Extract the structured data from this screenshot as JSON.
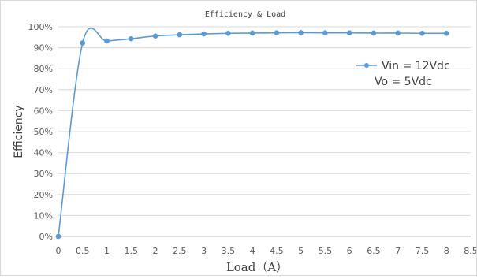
{
  "chart_data": {
    "type": "line",
    "title": "Efficiency & Load",
    "xlabel": "Load（A）",
    "ylabel": "Efficiency",
    "xlim": [
      0,
      8.5
    ],
    "ylim": [
      0,
      100
    ],
    "x_ticks": [
      "0",
      "0.5",
      "1",
      "1.5",
      "2",
      "2.5",
      "3",
      "3.5",
      "4",
      "4.5",
      "5",
      "5.5",
      "6",
      "6.5",
      "7",
      "7.5",
      "8",
      "8.5"
    ],
    "y_ticks": [
      "0%",
      "10%",
      "20%",
      "30%",
      "40%",
      "50%",
      "60%",
      "70%",
      "80%",
      "90%",
      "100%"
    ],
    "grid": true,
    "legend_position": "right",
    "legend": {
      "series_label": "Vin = 12Vdc",
      "second_line": "Vo = 5Vdc"
    },
    "series": [
      {
        "name": "Vin = 12Vdc",
        "color": "#5b9bd5",
        "x": [
          0,
          0.5,
          1,
          1.5,
          2,
          2.5,
          3,
          3.5,
          4,
          4.5,
          5,
          5.5,
          6,
          6.5,
          7,
          7.5,
          8
        ],
        "y": [
          0,
          92.3,
          93.2,
          94.3,
          95.6,
          96.2,
          96.6,
          96.9,
          97.0,
          97.1,
          97.2,
          97.1,
          97.1,
          97.0,
          97.0,
          96.9,
          96.9
        ]
      }
    ]
  }
}
